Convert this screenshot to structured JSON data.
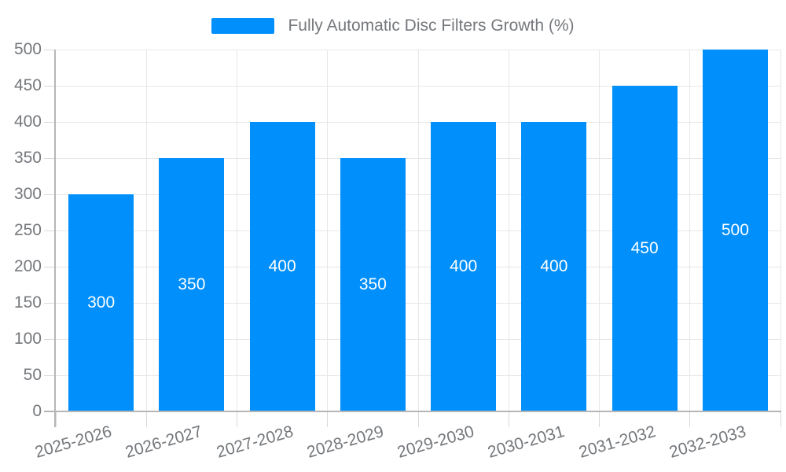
{
  "legend": {
    "label": "Fully Automatic Disc Filters Growth (%)",
    "swatch_color": "#008FFB"
  },
  "chart_data": {
    "type": "bar",
    "title": "Fully Automatic Disc Filters Growth (%)",
    "categories": [
      "2025-2026",
      "2026-2027",
      "2027-2028",
      "2028-2029",
      "2029-2030",
      "2030-2031",
      "2031-2032",
      "2032-2033"
    ],
    "series": [
      {
        "name": "Fully Automatic Disc Filters Growth (%)",
        "values": [
          300,
          350,
          400,
          350,
          400,
          400,
          450,
          500
        ]
      }
    ],
    "bar_labels": [
      "300",
      "350",
      "400",
      "350",
      "400",
      "400",
      "450",
      "500"
    ],
    "xlabel": "",
    "ylabel": "",
    "ylim": [
      0,
      500
    ],
    "ytick_step": 50,
    "ytick_labels": [
      "0",
      "50",
      "100",
      "150",
      "200",
      "250",
      "300",
      "350",
      "400",
      "450",
      "500"
    ],
    "grid": true,
    "legend_position": "top-center",
    "x_label_rotation": -16,
    "bar_color": "#008FFB",
    "bar_label_color": "#FFFFFF"
  },
  "colors": {
    "bar": "#008FFB",
    "axis_line": "#b6b6b6",
    "gridline": "#e7e7e7",
    "tick": "#d9d9d9",
    "tick_text": "#75787c",
    "legend_text": "#75787c",
    "background": "#FFFFFF"
  }
}
